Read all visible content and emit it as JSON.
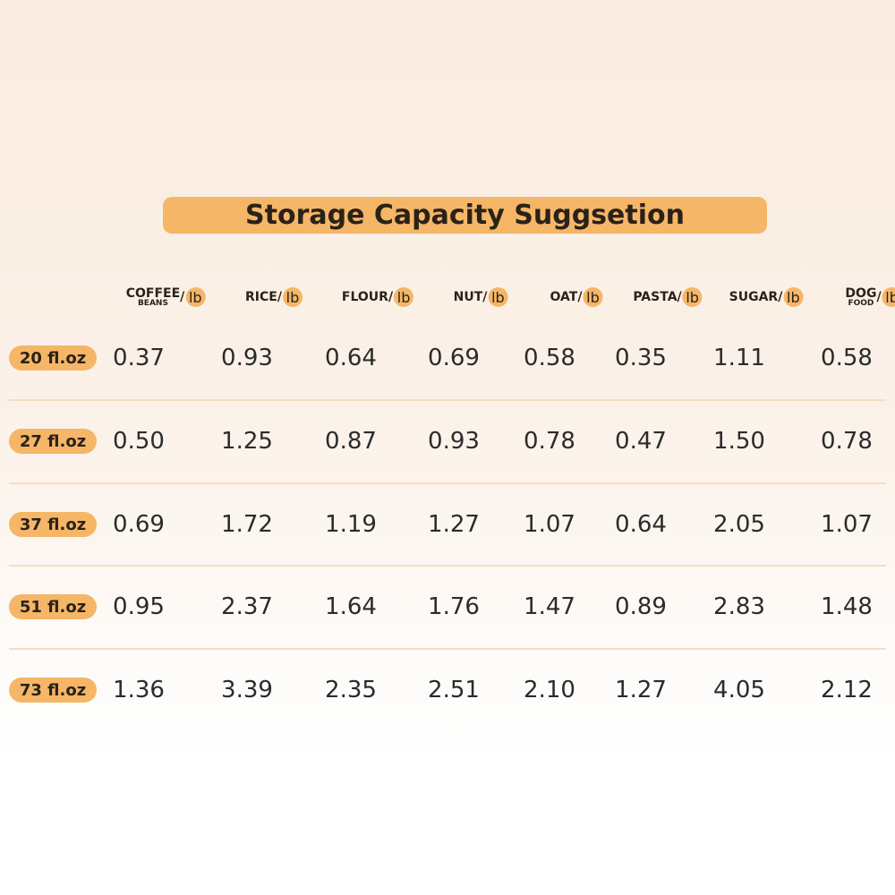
{
  "title": "Storage Capacity Suggsetion",
  "table": {
    "columns": [
      {
        "label": "COFFEE",
        "sublabel": "BEANS",
        "sep": "/",
        "unit": "lb"
      },
      {
        "label": "RICE",
        "sep": " / ",
        "unit": "lb"
      },
      {
        "label": "FLOUR",
        "sep": "/",
        "unit": "lb"
      },
      {
        "label": "NUT",
        "sep": "/",
        "unit": "lb"
      },
      {
        "label": "OAT",
        "sep": "/",
        "unit": "lb"
      },
      {
        "label": "PASTA",
        "sep": "/",
        "unit": "lb"
      },
      {
        "label": "SUGAR",
        "sep": "/",
        "unit": "lb"
      },
      {
        "label": "DOG",
        "sublabel": "FOOD",
        "sep": "/",
        "unit": "lb"
      }
    ],
    "rows": [
      {
        "label": "20 fl.oz",
        "values": [
          "0.37",
          "0.93",
          "0.64",
          "0.69",
          "0.58",
          "0.35",
          "1.11",
          "0.58"
        ]
      },
      {
        "label": "27 fl.oz",
        "values": [
          "0.50",
          "1.25",
          "0.87",
          "0.93",
          "0.78",
          "0.47",
          "1.50",
          "0.78"
        ]
      },
      {
        "label": "37 fl.oz",
        "values": [
          "0.69",
          "1.72",
          "1.19",
          "1.27",
          "1.07",
          "0.64",
          "2.05",
          "1.07"
        ]
      },
      {
        "label": "51 fl.oz",
        "values": [
          "0.95",
          "2.37",
          "1.64",
          "1.76",
          "1.47",
          "0.89",
          "2.83",
          "1.48"
        ]
      },
      {
        "label": "73 fl.oz",
        "values": [
          "1.36",
          "3.39",
          "2.35",
          "2.51",
          "2.10",
          "1.27",
          "4.05",
          "2.12"
        ]
      }
    ]
  }
}
